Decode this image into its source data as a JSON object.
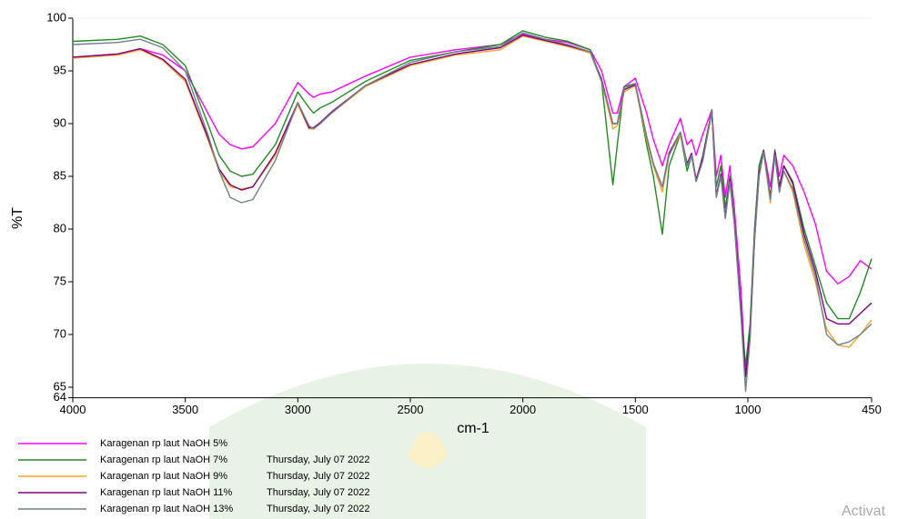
{
  "chart_data": {
    "type": "line",
    "x_label": "cm-1",
    "y_label": "%T",
    "xlim": [
      4000,
      450
    ],
    "ylim": [
      64,
      100
    ],
    "xticks": [
      4000,
      3500,
      3000,
      2500,
      2000,
      1500,
      1000,
      450
    ],
    "yticks": [
      64,
      65,
      70,
      75,
      80,
      85,
      90,
      95,
      100
    ],
    "x": [
      4000,
      3800,
      3700,
      3600,
      3500,
      3400,
      3350,
      3300,
      3250,
      3200,
      3100,
      3000,
      2950,
      2930,
      2900,
      2850,
      2700,
      2500,
      2300,
      2100,
      2000,
      1900,
      1800,
      1700,
      1650,
      1600,
      1580,
      1550,
      1500,
      1450,
      1420,
      1380,
      1350,
      1300,
      1270,
      1250,
      1230,
      1200,
      1160,
      1140,
      1120,
      1100,
      1080,
      1060,
      1030,
      1010,
      990,
      970,
      950,
      930,
      900,
      880,
      860,
      840,
      800,
      750,
      700,
      650,
      600,
      550,
      500,
      450
    ],
    "series": [
      {
        "name": "Karagenan rp laut NaOH 5%",
        "color": "#ff00ff",
        "values": [
          96.3,
          96.6,
          97.1,
          96.5,
          95,
          91,
          89,
          88,
          87.6,
          87.8,
          90,
          93.9,
          92.8,
          92.5,
          92.8,
          93,
          94.5,
          96.3,
          97,
          97.5,
          98.5,
          98,
          97.7,
          97,
          95,
          91,
          91,
          93.5,
          94.3,
          91,
          88.5,
          86,
          88,
          90.5,
          88,
          88.5,
          87,
          89,
          91.3,
          85,
          87,
          83,
          86,
          82,
          74,
          66,
          70,
          80,
          86,
          87.5,
          84,
          87.5,
          85,
          87,
          86,
          83.5,
          80.5,
          76,
          74.8,
          75.5,
          77,
          76.2
        ]
      },
      {
        "name": "Karagenan rp laut NaOH 7%",
        "date": "Thursday, July 07 2022",
        "color": "#228b22",
        "values": [
          97.8,
          98,
          98.3,
          97.5,
          95.5,
          90,
          87,
          85.5,
          85,
          85.2,
          88,
          93,
          91.5,
          91,
          91.5,
          92,
          94,
          96,
          96.8,
          97.5,
          98.8,
          98.2,
          97.8,
          97,
          94,
          84.2,
          88,
          93.5,
          93.8,
          88,
          85,
          79.5,
          86,
          89,
          85.5,
          87,
          84.5,
          87,
          91.3,
          84,
          86,
          82,
          85,
          81,
          72,
          67,
          71,
          80,
          86,
          87.5,
          83,
          87.5,
          84,
          86,
          84.5,
          80,
          76.5,
          73,
          71.5,
          71.5,
          74,
          77.2
        ]
      },
      {
        "name": "Karagenan rp laut NaOH 9%",
        "date": "Thursday, July 07 2022",
        "color": "#f5a623",
        "values": [
          96.2,
          96.5,
          97,
          96,
          94,
          88.5,
          85.5,
          84,
          83.8,
          84,
          87,
          91.8,
          89.5,
          89.5,
          90,
          91,
          93.5,
          95.5,
          96.5,
          97,
          98.3,
          97.8,
          97.3,
          96.7,
          94,
          89.5,
          89.8,
          93,
          93.6,
          88.5,
          86,
          83.5,
          87,
          89,
          86,
          87,
          84.5,
          86.5,
          91,
          83,
          85,
          81,
          84.5,
          80.5,
          72,
          65.5,
          70,
          79,
          85,
          87.3,
          82.5,
          87,
          83.5,
          85.5,
          83.5,
          78.5,
          75,
          70.5,
          69,
          68.8,
          70,
          71.4
        ]
      },
      {
        "name": "Karagenan rp laut NaOH 11%",
        "date": "Thursday, July 07 2022",
        "color": "#800080",
        "values": [
          96.3,
          96.6,
          97.1,
          96.1,
          94.2,
          88.7,
          85.7,
          84.2,
          83.7,
          84,
          87.2,
          92,
          89.6,
          89.6,
          90.1,
          91.1,
          93.6,
          95.6,
          96.6,
          97.2,
          98.4,
          97.9,
          97.4,
          96.8,
          94.2,
          90,
          90,
          93.2,
          93.7,
          88.8,
          86.2,
          84,
          87.2,
          89.2,
          86.2,
          87.2,
          84.7,
          86.8,
          91.2,
          83.2,
          85.2,
          81.2,
          84.7,
          80.7,
          72.2,
          66,
          70.2,
          79.2,
          85.2,
          87.4,
          83,
          87.2,
          84,
          86,
          84.3,
          79.5,
          76,
          71.5,
          71,
          71,
          72,
          73
        ]
      },
      {
        "name": "Karagenan rp laut NaOH 13%",
        "date": "Thursday, July 07 2022",
        "color": "#708090",
        "values": [
          97.5,
          97.7,
          98,
          97.2,
          95,
          89,
          85.5,
          83,
          82.5,
          82.8,
          86.5,
          92,
          89.8,
          89.5,
          90,
          91,
          93.6,
          95.8,
          96.8,
          97.3,
          98.6,
          98,
          97.5,
          96.8,
          94,
          90,
          90,
          93.3,
          93.8,
          88.8,
          86.2,
          84,
          87,
          89.2,
          86,
          87,
          84.5,
          86.5,
          91.2,
          83,
          85,
          81,
          84.5,
          80.5,
          71.5,
          64.6,
          69.5,
          79,
          85,
          87.3,
          82.8,
          87,
          83.5,
          85.5,
          83.8,
          79,
          75.5,
          70,
          69,
          69.3,
          70,
          71
        ]
      }
    ],
    "watermark": "Activat"
  }
}
